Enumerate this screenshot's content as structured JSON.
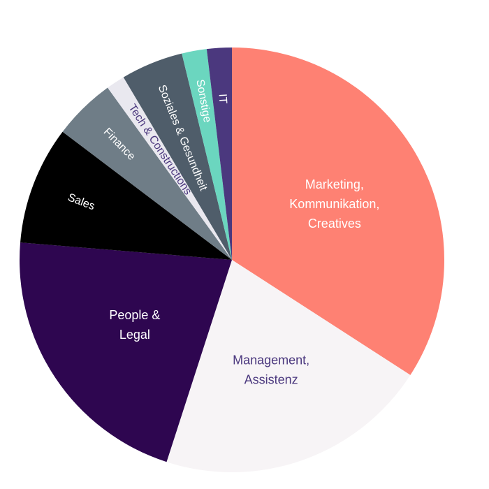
{
  "chart_data": {
    "type": "pie",
    "title": "",
    "start_angle_deg": 0,
    "direction": "clockwise",
    "slices": [
      {
        "label_lines": [
          "Marketing,",
          "Kommunikation,",
          "Creatives"
        ],
        "value": 36.0,
        "color": "#fe8173",
        "text_color": "#ffffff",
        "rotated": false
      },
      {
        "label_lines": [
          "Management,",
          "Assistenz"
        ],
        "value": 22.0,
        "color": "#f7f4f6",
        "text_color": "#4b387e",
        "rotated": false
      },
      {
        "label_lines": [
          "People &",
          "Legal"
        ],
        "value": 22.5,
        "color": "#2e0650",
        "text_color": "#ffffff",
        "rotated": false
      },
      {
        "label_lines": [
          "Sales"
        ],
        "value": 9.5,
        "color": "#000000",
        "text_color": "#ffffff",
        "rotated": true
      },
      {
        "label_lines": [
          "Finance"
        ],
        "value": 5.0,
        "color": "#6f7d87",
        "text_color": "#ffffff",
        "rotated": true
      },
      {
        "label_lines": [
          "Tech & Constructions"
        ],
        "value": 1.5,
        "color": "#e9e8ef",
        "text_color": "#4b387e",
        "rotated": true
      },
      {
        "label_lines": [
          "Soziales & Gesundheit"
        ],
        "value": 5.0,
        "color": "#4f5d6a",
        "text_color": "#ffffff",
        "rotated": true
      },
      {
        "label_lines": [
          "Sonstige"
        ],
        "value": 2.0,
        "color": "#6bd6bf",
        "text_color": "#ffffff",
        "rotated": true
      },
      {
        "label_lines": [
          "IT"
        ],
        "value": 2.0,
        "color": "#4b387e",
        "text_color": "#ffffff",
        "rotated": true
      }
    ]
  }
}
